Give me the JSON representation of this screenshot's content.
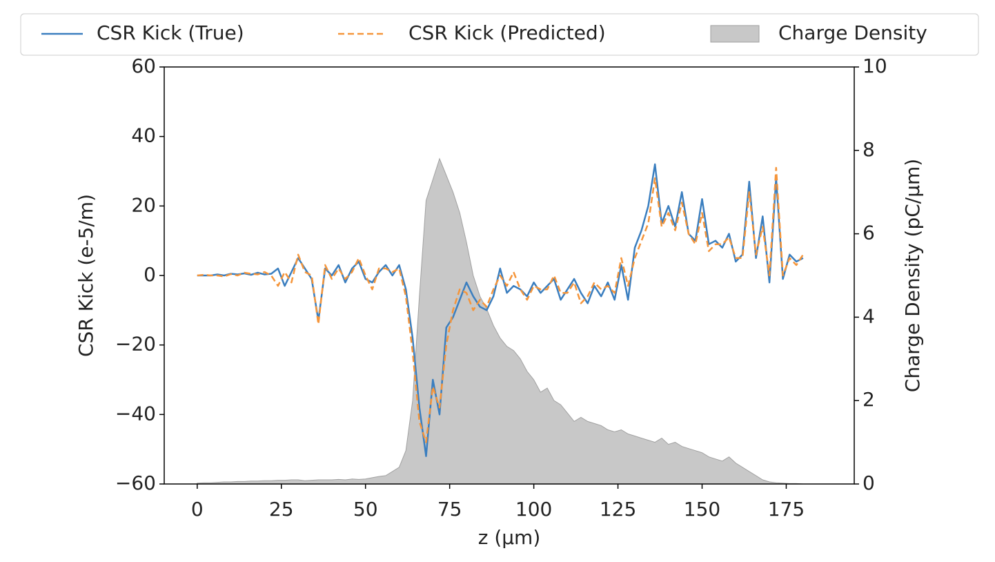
{
  "chart_data": {
    "type": "line",
    "xlabel": "z (μm)",
    "ylabel": "CSR Kick (e-5/m)",
    "y2label": "Charge Density (pC/μm)",
    "x": [
      0,
      2,
      4,
      6,
      8,
      10,
      12,
      14,
      16,
      18,
      20,
      22,
      24,
      26,
      28,
      30,
      32,
      34,
      36,
      38,
      40,
      42,
      44,
      46,
      48,
      50,
      52,
      54,
      56,
      58,
      60,
      62,
      64,
      66,
      68,
      70,
      72,
      74,
      76,
      78,
      80,
      82,
      84,
      86,
      88,
      90,
      92,
      94,
      96,
      98,
      100,
      102,
      104,
      106,
      108,
      110,
      112,
      114,
      116,
      118,
      120,
      122,
      124,
      126,
      128,
      130,
      132,
      134,
      136,
      138,
      140,
      142,
      144,
      146,
      148,
      150,
      152,
      154,
      156,
      158,
      160,
      162,
      164,
      166,
      168,
      170,
      172,
      174,
      176,
      178,
      180
    ],
    "series": [
      {
        "name": "CSR Kick (True)",
        "color": "#3a7ebf",
        "style": "solid",
        "values": [
          0,
          0,
          0,
          0.3,
          0,
          0.5,
          0.3,
          0.6,
          0.2,
          0.8,
          0.3,
          0.5,
          2,
          -3,
          1,
          5,
          2,
          -1,
          -13,
          2,
          0,
          3,
          -2,
          2,
          4,
          -1,
          -2,
          1,
          3,
          0,
          3,
          -4,
          -18,
          -38,
          -52,
          -30,
          -40,
          -15,
          -12,
          -7,
          -2,
          -6,
          -9,
          -10,
          -6,
          2,
          -5,
          -3,
          -4,
          -6,
          -2,
          -5,
          -3,
          -1,
          -7,
          -4,
          -1,
          -5,
          -8,
          -3,
          -6,
          -2,
          -7,
          3,
          -7,
          8,
          13,
          20,
          32,
          15,
          20,
          14,
          24,
          12,
          10,
          22,
          9,
          10,
          8,
          12,
          4,
          6,
          27,
          5,
          17,
          -2,
          28,
          -1,
          6,
          4,
          5
        ]
      },
      {
        "name": "CSR Kick (Predicted)",
        "color": "#f5953a",
        "style": "dashed",
        "values": [
          0,
          0.2,
          0,
          0,
          -0.3,
          0.4,
          0,
          0.8,
          0.5,
          0.3,
          1,
          0,
          -3,
          1,
          -2,
          6,
          1,
          0,
          -14,
          3,
          -1,
          2,
          -1,
          1,
          5,
          0,
          -4,
          2,
          2,
          1,
          2,
          -6,
          -22,
          -42,
          -48,
          -32,
          -38,
          -20,
          -10,
          -4,
          -5,
          -10,
          -7,
          -9,
          -4,
          0,
          -3,
          1,
          -4,
          -7,
          -3,
          -4,
          -4,
          0,
          -5,
          -5,
          -2,
          -8,
          -6,
          -2,
          -4,
          -3,
          -5,
          5,
          -3,
          5,
          10,
          15,
          28,
          14,
          18,
          13,
          21,
          12,
          9,
          18,
          7,
          9,
          9,
          11,
          5,
          5,
          24,
          6,
          14,
          0,
          31,
          0,
          5,
          3,
          6
        ]
      },
      {
        "name": "Charge Density",
        "color": "#c8c8c8",
        "edge": "#a0a0a0",
        "type": "area",
        "axis": "y2",
        "values": [
          0.02,
          0.03,
          0.03,
          0.04,
          0.05,
          0.05,
          0.06,
          0.06,
          0.07,
          0.07,
          0.08,
          0.08,
          0.09,
          0.09,
          0.1,
          0.1,
          0.08,
          0.09,
          0.1,
          0.1,
          0.1,
          0.11,
          0.1,
          0.12,
          0.11,
          0.12,
          0.15,
          0.18,
          0.2,
          0.3,
          0.4,
          0.8,
          2,
          4.5,
          6.8,
          7.3,
          7.8,
          7.4,
          7,
          6.5,
          5.8,
          5,
          4.5,
          4.2,
          3.8,
          3.5,
          3.3,
          3.2,
          3,
          2.7,
          2.5,
          2.2,
          2.3,
          2,
          1.9,
          1.7,
          1.5,
          1.6,
          1.5,
          1.45,
          1.4,
          1.3,
          1.25,
          1.3,
          1.2,
          1.15,
          1.1,
          1.05,
          1,
          1.1,
          0.95,
          1,
          0.9,
          0.85,
          0.8,
          0.75,
          0.65,
          0.6,
          0.55,
          0.65,
          0.5,
          0.4,
          0.3,
          0.2,
          0.1,
          0.05,
          0.03,
          0.02,
          0.01,
          0.01,
          0
        ]
      }
    ],
    "xlim": [
      -9.8,
      195.2
    ],
    "xticks": [
      0,
      25,
      50,
      75,
      100,
      125,
      150,
      175
    ],
    "ylim": [
      -60,
      60
    ],
    "yticks": [
      {
        "value": -60,
        "label": "−60"
      },
      {
        "value": -40,
        "label": "−40"
      },
      {
        "value": -20,
        "label": "−20"
      },
      0,
      20,
      40,
      60
    ],
    "y2lim": [
      0,
      10
    ],
    "y2ticks": [
      0,
      2,
      4,
      6,
      8,
      10
    ],
    "legend": "top"
  }
}
